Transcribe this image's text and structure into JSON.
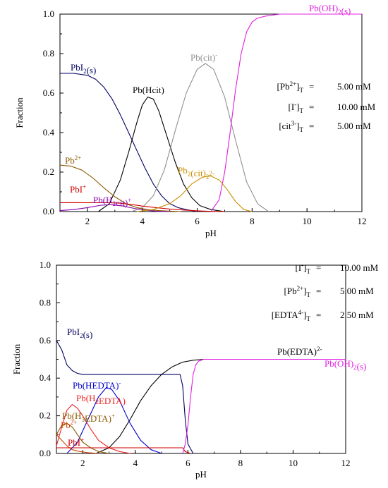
{
  "chart_data": [
    {
      "type": "line",
      "xlabel": "pH",
      "ylabel": "Fraction",
      "xlim": [
        1,
        12
      ],
      "ylim": [
        0,
        1.0
      ],
      "xticks": [
        "2",
        "4",
        "6",
        "8",
        "10",
        "12"
      ],
      "yticks": [
        "0.0",
        "0.2",
        "0.4",
        "0.6",
        "0.8",
        "1.0"
      ],
      "conditions": [
        {
          "species": "[Pb",
          "sup": "2+",
          "sub": "T",
          "value": "5.00 mM"
        },
        {
          "species": "[I",
          "sup": "-",
          "sub": "T",
          "value": "10.00 mM"
        },
        {
          "species": "[cit",
          "sup": "3-",
          "sub": "T",
          "value": "5.00 mM"
        }
      ],
      "series": [
        {
          "name": "PbI2(s)",
          "label": {
            "base": "PbI",
            "sub": "2",
            "tail": "(s)"
          },
          "color": "#000060",
          "x": [
            1.0,
            1.5,
            2.0,
            2.3,
            2.6,
            2.9,
            3.2,
            3.5,
            3.8,
            4.1,
            4.4,
            4.7,
            5.0,
            5.3,
            5.6,
            6.0
          ],
          "y": [
            0.7,
            0.7,
            0.69,
            0.67,
            0.63,
            0.57,
            0.49,
            0.4,
            0.31,
            0.22,
            0.14,
            0.08,
            0.04,
            0.02,
            0.01,
            0.0
          ]
        },
        {
          "name": "Pb(Hcit)",
          "label": {
            "base": "Pb(Hcit)"
          },
          "color": "#000000",
          "x": [
            2.4,
            2.8,
            3.2,
            3.5,
            3.8,
            4.0,
            4.2,
            4.4,
            4.6,
            4.9,
            5.2,
            5.5,
            5.8,
            6.1,
            6.5,
            7.0
          ],
          "y": [
            0.0,
            0.04,
            0.16,
            0.3,
            0.45,
            0.54,
            0.58,
            0.57,
            0.51,
            0.38,
            0.25,
            0.14,
            0.07,
            0.03,
            0.01,
            0.0
          ]
        },
        {
          "name": "Pb(cit)-",
          "label": {
            "base": "Pb(cit)",
            "sup": "-"
          },
          "color": "#909090",
          "x": [
            3.6,
            4.0,
            4.4,
            4.8,
            5.2,
            5.6,
            6.0,
            6.3,
            6.6,
            7.0,
            7.4,
            7.8,
            8.2,
            8.6
          ],
          "y": [
            0.0,
            0.02,
            0.08,
            0.21,
            0.41,
            0.6,
            0.72,
            0.75,
            0.72,
            0.58,
            0.36,
            0.15,
            0.04,
            0.0
          ]
        },
        {
          "name": "Pb(OH)2(s)",
          "label": {
            "base": "Pb(OH)",
            "sub": "2",
            "tail": "(s)"
          },
          "color": "#e020e0",
          "x": [
            6.5,
            6.8,
            7.0,
            7.2,
            7.4,
            7.6,
            7.8,
            8.0,
            8.2,
            8.5,
            9.0,
            10.0,
            11.0,
            12.0
          ],
          "y": [
            0.0,
            0.06,
            0.2,
            0.4,
            0.62,
            0.8,
            0.91,
            0.96,
            0.98,
            0.99,
            1.0,
            1.0,
            1.0,
            1.0
          ]
        },
        {
          "name": "Pb2+",
          "label": {
            "base": "Pb",
            "sup": "2+"
          },
          "color": "#8a5a00",
          "x": [
            1.0,
            1.4,
            1.8,
            2.2,
            2.6,
            3.0,
            3.4,
            3.8,
            4.2,
            4.6,
            5.0,
            5.4
          ],
          "y": [
            0.235,
            0.23,
            0.21,
            0.17,
            0.12,
            0.075,
            0.04,
            0.02,
            0.01,
            0.005,
            0.002,
            0.0
          ]
        },
        {
          "name": "PbI+",
          "label": {
            "base": "PbI",
            "sup": "+"
          },
          "color": "#d00000",
          "x": [
            1.0,
            2.0,
            2.8,
            3.2,
            3.6,
            4.0,
            4.5,
            5.0,
            5.5,
            6.0,
            6.5,
            7.0
          ],
          "y": [
            0.045,
            0.045,
            0.045,
            0.042,
            0.036,
            0.028,
            0.02,
            0.013,
            0.008,
            0.004,
            0.001,
            0.0
          ]
        },
        {
          "name": "Pb(H2cit)+",
          "label": {
            "base": "Pb(H",
            "sub": "2",
            "tail": "cit)",
            "sup": "+"
          },
          "color": "#8800aa",
          "x": [
            1.0,
            1.5,
            2.0,
            2.5,
            2.9,
            3.3,
            3.7,
            4.1,
            4.5,
            5.0
          ],
          "y": [
            0.005,
            0.01,
            0.02,
            0.032,
            0.035,
            0.028,
            0.016,
            0.007,
            0.002,
            0.0
          ]
        },
        {
          "name": "Pb2(cit)2 2-",
          "label": {
            "base": "Pb",
            "sub": "2",
            "tail": "(cit)",
            "sub2": "2",
            "sup": "2-"
          },
          "color": "#c89000",
          "x": [
            3.8,
            4.4,
            5.0,
            5.4,
            5.8,
            6.2,
            6.5,
            6.8,
            7.1,
            7.4,
            7.7,
            8.0
          ],
          "y": [
            0.0,
            0.01,
            0.04,
            0.08,
            0.14,
            0.175,
            0.18,
            0.16,
            0.11,
            0.05,
            0.01,
            0.0
          ]
        }
      ]
    },
    {
      "type": "line",
      "xlabel": "pH",
      "ylabel": "Fraction",
      "xlim": [
        1,
        12
      ],
      "ylim": [
        0,
        1.0
      ],
      "xticks": [
        "2",
        "4",
        "6",
        "8",
        "10",
        "12"
      ],
      "yticks": [
        "0.0",
        "0.2",
        "0.4",
        "0.6",
        "0.8",
        "1.0"
      ],
      "conditions": [
        {
          "species": "[I",
          "sup": "-",
          "sub": "T",
          "value": "10.00 mM"
        },
        {
          "species": "[Pb",
          "sup": "2+",
          "sub": "T",
          "value": "5.00 mM"
        },
        {
          "species": "[EDTA",
          "sup": "4-",
          "sub": "T",
          "value": "2.50 mM"
        }
      ],
      "series": [
        {
          "name": "PbI2(s)",
          "label": {
            "base": "PbI",
            "sub": "2",
            "tail": "(s)"
          },
          "color": "#000060",
          "x": [
            1.0,
            1.2,
            1.4,
            1.6,
            1.8,
            2.0,
            3.0,
            4.0,
            5.0,
            5.7,
            5.8,
            5.9,
            6.0,
            6.2
          ],
          "y": [
            0.6,
            0.55,
            0.47,
            0.44,
            0.425,
            0.42,
            0.42,
            0.42,
            0.42,
            0.42,
            0.36,
            0.18,
            0.05,
            0.0
          ]
        },
        {
          "name": "Pb(EDTA)2-",
          "label": {
            "base": "Pb(EDTA)",
            "sup": "2-"
          },
          "color": "#000000",
          "x": [
            2.5,
            3.0,
            3.4,
            3.8,
            4.2,
            4.6,
            5.0,
            5.4,
            5.8,
            6.2,
            6.6,
            7.0
          ],
          "y": [
            0.0,
            0.03,
            0.09,
            0.18,
            0.28,
            0.36,
            0.42,
            0.46,
            0.485,
            0.495,
            0.5,
            0.5
          ]
        },
        {
          "name": "Pb(HEDTA)-",
          "label": {
            "base": "Pb(HEDTA)",
            "sup": "-"
          },
          "color": "#0000cc",
          "x": [
            1.4,
            1.8,
            2.2,
            2.6,
            2.9,
            3.1,
            3.4,
            3.8,
            4.2,
            4.6,
            5.0
          ],
          "y": [
            0.0,
            0.06,
            0.18,
            0.3,
            0.35,
            0.34,
            0.28,
            0.16,
            0.07,
            0.02,
            0.0
          ]
        },
        {
          "name": "Pb(H2EDTA)",
          "label": {
            "base": "Pb(H",
            "sub": "2",
            "tail": "EDTA)"
          },
          "color": "#ee2222",
          "x": [
            1.0,
            1.2,
            1.4,
            1.6,
            1.8,
            2.0,
            2.3,
            2.6,
            3.0,
            3.4,
            3.8
          ],
          "y": [
            0.04,
            0.14,
            0.23,
            0.26,
            0.24,
            0.2,
            0.13,
            0.07,
            0.03,
            0.01,
            0.0
          ]
        },
        {
          "name": "Pb(H3EDTA)+",
          "label": {
            "base": "Pb(H",
            "sub": "3",
            "tail": "EDTA)",
            "sup": "+"
          },
          "color": "#8a5a00",
          "x": [
            1.0,
            1.2,
            1.4,
            1.6,
            1.8,
            2.0,
            2.3,
            2.6,
            3.0
          ],
          "y": [
            0.1,
            0.15,
            0.16,
            0.14,
            0.1,
            0.06,
            0.03,
            0.01,
            0.0
          ]
        },
        {
          "name": "Pb2+",
          "label": {
            "base": "Pb",
            "sup": "2+"
          },
          "color": "#cc4400",
          "x": [
            1.0,
            1.2,
            1.4,
            1.6,
            1.9,
            2.2,
            2.6
          ],
          "y": [
            0.1,
            0.07,
            0.04,
            0.02,
            0.01,
            0.004,
            0.0
          ]
        },
        {
          "name": "PbI+",
          "label": {
            "base": "PbI",
            "sup": "+"
          },
          "color": "#d00000",
          "x": [
            1.0,
            1.3,
            1.6,
            2.0,
            3.0,
            4.0,
            5.0,
            5.8,
            5.9,
            6.1
          ],
          "y": [
            0.03,
            0.03,
            0.03,
            0.03,
            0.03,
            0.03,
            0.03,
            0.03,
            0.01,
            0.0
          ]
        },
        {
          "name": "Pb(OH)2(s)",
          "label": {
            "base": "Pb(OH)",
            "sub": "2",
            "tail": "(s)"
          },
          "color": "#e020e0",
          "x": [
            5.8,
            5.9,
            6.0,
            6.1,
            6.2,
            6.3,
            6.4,
            6.6,
            7.0,
            8.0,
            10.0,
            12.0
          ],
          "y": [
            0.0,
            0.05,
            0.15,
            0.3,
            0.42,
            0.47,
            0.49,
            0.5,
            0.5,
            0.5,
            0.5,
            0.5
          ]
        }
      ]
    }
  ]
}
